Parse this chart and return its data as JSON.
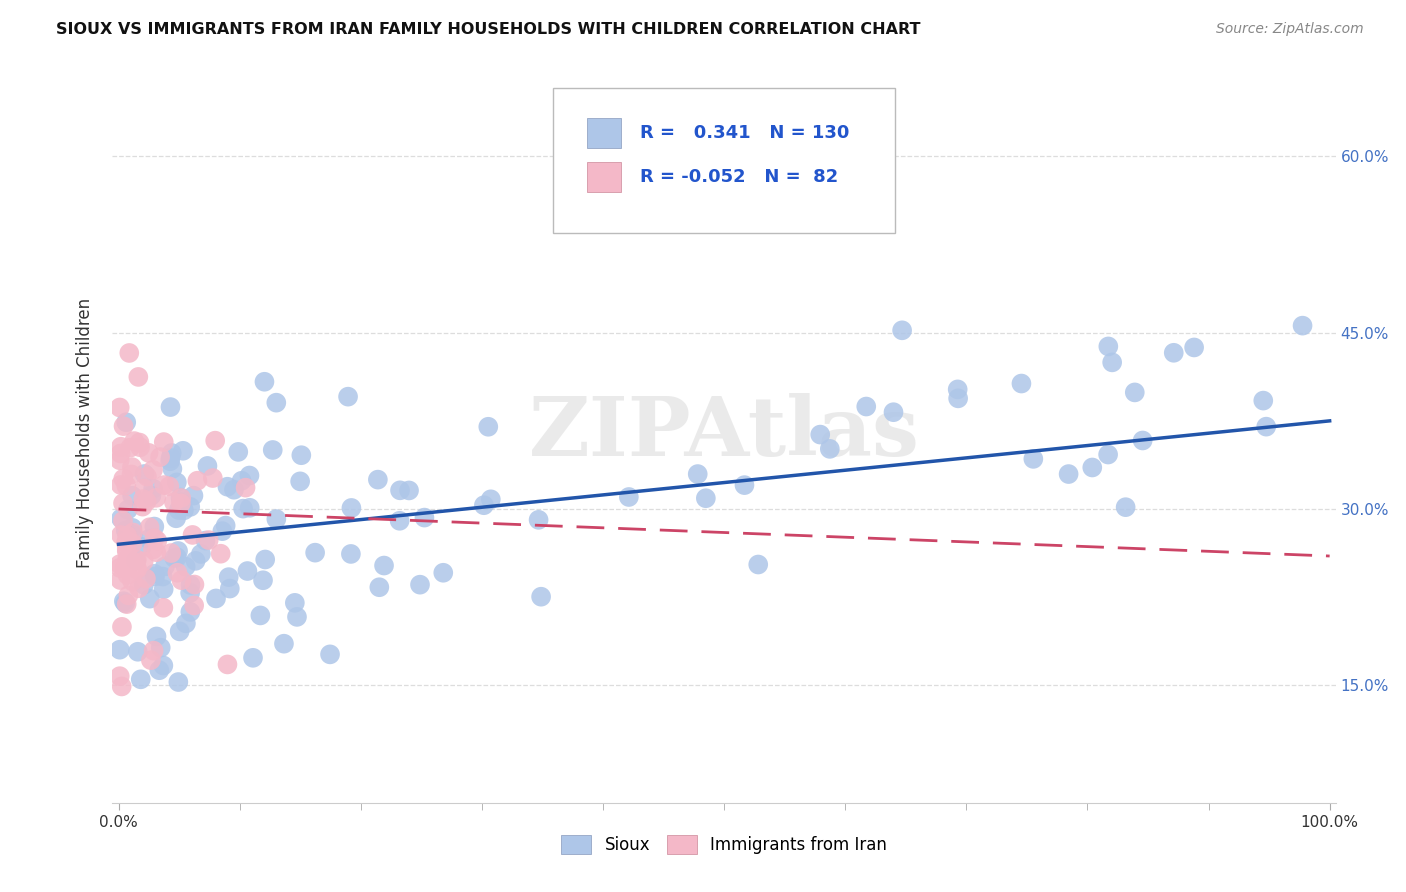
{
  "title": "SIOUX VS IMMIGRANTS FROM IRAN FAMILY HOUSEHOLDS WITH CHILDREN CORRELATION CHART",
  "source": "Source: ZipAtlas.com",
  "ylabel": "Family Households with Children",
  "xlabel": "",
  "sioux_R": 0.341,
  "sioux_N": 130,
  "iran_R": -0.052,
  "iran_N": 82,
  "sioux_color": "#aec6e8",
  "iran_color": "#f4b8c8",
  "sioux_line_color": "#2255aa",
  "iran_line_color": "#cc4466",
  "background_color": "#ffffff",
  "xlim": [
    0.0,
    1.0
  ],
  "ylim": [
    0.05,
    0.68
  ],
  "xtick_vals": [
    0.0,
    1.0
  ],
  "xtick_labels": [
    "0.0%",
    "100.0%"
  ],
  "ytick_vals": [
    0.15,
    0.3,
    0.45,
    0.6
  ],
  "ytick_labels": [
    "15.0%",
    "30.0%",
    "45.0%",
    "60.0%"
  ],
  "watermark": "ZIPAtlas",
  "grid_color": "#dddddd",
  "legend_box_color": "#f0f4ff",
  "legend_border_color": "#aabbdd",
  "sioux_line_start_y": 0.27,
  "sioux_line_end_y": 0.375,
  "iran_line_start_y": 0.3,
  "iran_line_end_y": 0.26
}
